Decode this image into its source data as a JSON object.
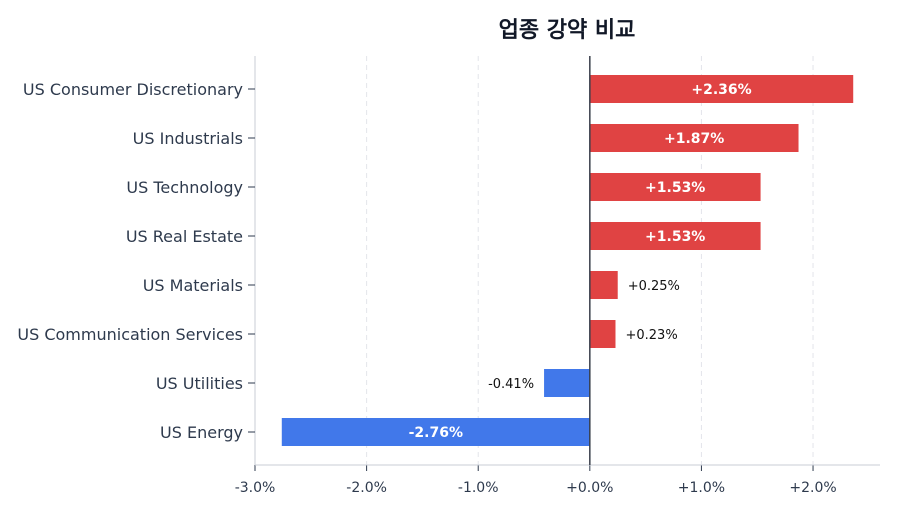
{
  "chart_data": {
    "type": "bar",
    "orientation": "horizontal",
    "title": "업종 강약 비교",
    "categories": [
      "US Consumer Discretionary",
      "US Industrials",
      "US Technology",
      "US Real Estate",
      "US Materials",
      "US Communication Services",
      "US Utilities",
      "US Energy"
    ],
    "values": [
      2.36,
      1.87,
      1.53,
      1.53,
      0.25,
      0.23,
      -0.41,
      -2.76
    ],
    "data_labels": [
      "+2.36%",
      "+1.87%",
      "+1.53%",
      "+1.53%",
      "+0.25%",
      "+0.23%",
      "-0.41%",
      "-2.76%"
    ],
    "xlim": [
      -3.0,
      2.6
    ],
    "xticks": [
      -3,
      -2,
      -1,
      0,
      1,
      2
    ],
    "xtick_labels": [
      "-3.0%",
      "-2.0%",
      "-1.0%",
      "+0.0%",
      "+1.0%",
      "+2.0%"
    ],
    "grid": "vertical dashed",
    "colors": {
      "positive": "#e04343",
      "negative": "#4178ea",
      "zero_line": "#3a3f4b",
      "text": "#2e3a4d"
    }
  }
}
